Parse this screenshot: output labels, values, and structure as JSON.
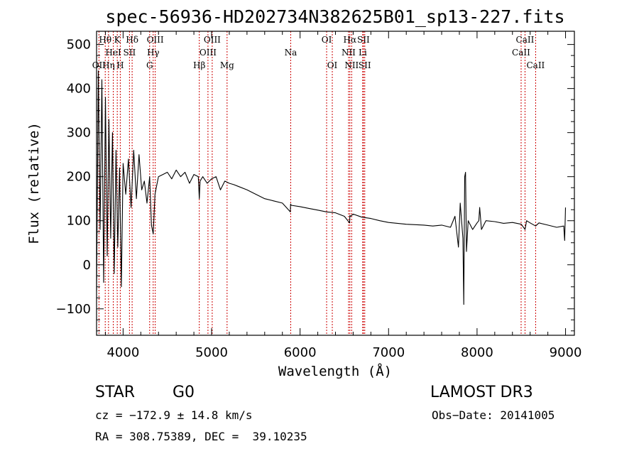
{
  "chart_data": {
    "type": "line",
    "title": "spec-56936-HD202734N382625B01_sp13-227.fits",
    "xlabel": "Wavelength (Å)",
    "ylabel": "Flux (relative)",
    "xlim": [
      3700,
      9100
    ],
    "ylim": [
      -160,
      530
    ],
    "xticks": [
      4000,
      5000,
      6000,
      7000,
      8000,
      9000
    ],
    "xtick_labels": [
      "4000",
      "5000",
      "6000",
      "7000",
      "8000",
      "9000"
    ],
    "yticks": [
      -100,
      0,
      100,
      200,
      300,
      400,
      500
    ],
    "ytick_labels": [
      "−100",
      "0",
      "100",
      "200",
      "300",
      "400",
      "500"
    ],
    "series": [
      {
        "name": "flux",
        "x": [
          3700,
          3720,
          3740,
          3760,
          3780,
          3800,
          3820,
          3840,
          3860,
          3880,
          3900,
          3920,
          3940,
          3960,
          3980,
          4000,
          4030,
          4060,
          4090,
          4120,
          4150,
          4180,
          4210,
          4240,
          4270,
          4300,
          4320,
          4340,
          4360,
          4380,
          4400,
          4450,
          4500,
          4550,
          4600,
          4650,
          4700,
          4750,
          4800,
          4850,
          4861,
          4870,
          4900,
          4950,
          5000,
          5050,
          5100,
          5150,
          5200,
          5250,
          5300,
          5400,
          5500,
          5600,
          5700,
          5800,
          5890,
          5893,
          5900,
          6000,
          6100,
          6200,
          6300,
          6400,
          6500,
          6560,
          6563,
          6570,
          6600,
          6700,
          6800,
          6900,
          7000,
          7100,
          7200,
          7300,
          7400,
          7500,
          7600,
          7700,
          7750,
          7790,
          7810,
          7840,
          7850,
          7860,
          7870,
          7880,
          7900,
          7950,
          8000,
          8020,
          8030,
          8050,
          8100,
          8200,
          8300,
          8400,
          8500,
          8542,
          8560,
          8600,
          8662,
          8700,
          8800,
          8900,
          8980,
          8990,
          9000
        ],
        "y": [
          -60,
          440,
          80,
          420,
          -40,
          380,
          20,
          330,
          60,
          300,
          -20,
          260,
          40,
          220,
          -50,
          230,
          160,
          240,
          130,
          260,
          150,
          250,
          170,
          190,
          140,
          200,
          90,
          70,
          160,
          180,
          200,
          205,
          210,
          195,
          215,
          200,
          210,
          185,
          205,
          200,
          150,
          190,
          200,
          185,
          195,
          200,
          170,
          190,
          185,
          182,
          178,
          170,
          160,
          150,
          145,
          140,
          120,
          138,
          135,
          132,
          128,
          124,
          120,
          118,
          110,
          95,
          112,
          110,
          115,
          108,
          105,
          100,
          96,
          94,
          92,
          91,
          90,
          88,
          90,
          85,
          110,
          40,
          140,
          60,
          -90,
          200,
          210,
          30,
          100,
          80,
          95,
          100,
          130,
          80,
          100,
          98,
          94,
          96,
          92,
          80,
          100,
          95,
          88,
          95,
          90,
          85,
          88,
          55,
          130
        ]
      }
    ],
    "spectral_lines": [
      {
        "label": "OII",
        "x": 3727,
        "row": 2
      },
      {
        "label": "Hθ",
        "x": 3798,
        "row": 0
      },
      {
        "label": "Hη",
        "x": 3835,
        "row": 2
      },
      {
        "label": "HeI",
        "x": 3889,
        "row": 1
      },
      {
        "label": "K",
        "x": 3934,
        "row": 0
      },
      {
        "label": "H",
        "x": 3968,
        "row": 2
      },
      {
        "label": "SII",
        "x": 4072,
        "row": 1
      },
      {
        "label": "Hδ",
        "x": 4102,
        "row": 0
      },
      {
        "label": "G",
        "x": 4300,
        "row": 2
      },
      {
        "label": "Hγ",
        "x": 4340,
        "row": 1
      },
      {
        "label": "OIII",
        "x": 4363,
        "row": 0
      },
      {
        "label": "Hβ",
        "x": 4861,
        "row": 2
      },
      {
        "label": "OIII",
        "x": 4959,
        "row": 1
      },
      {
        "label": "OIII",
        "x": 5007,
        "row": 0
      },
      {
        "label": "Mg",
        "x": 5175,
        "row": 2
      },
      {
        "label": "Na",
        "x": 5894,
        "row": 1
      },
      {
        "label": "OI",
        "x": 6300,
        "row": 0
      },
      {
        "label": "OI",
        "x": 6364,
        "row": 2
      },
      {
        "label": "NII",
        "x": 6548,
        "row": 1
      },
      {
        "label": "Hα",
        "x": 6563,
        "row": 0
      },
      {
        "label": "NII",
        "x": 6583,
        "row": 2
      },
      {
        "label": "Li",
        "x": 6708,
        "row": 1
      },
      {
        "label": "SII",
        "x": 6716,
        "row": 0
      },
      {
        "label": "SII",
        "x": 6731,
        "row": 2
      },
      {
        "label": "CaII",
        "x": 8498,
        "row": 1
      },
      {
        "label": "CaII",
        "x": 8542,
        "row": 0
      },
      {
        "label": "CaII",
        "x": 8662,
        "row": 2
      }
    ]
  },
  "info": {
    "class": "STAR",
    "subclass": "G0",
    "survey": "LAMOST DR3",
    "cz": "cz = −172.9 ± 14.8 km/s",
    "obs_date": "Obs−Date: 20141005",
    "coords": "RA = 308.75389, DEC =  39.10235"
  },
  "colors": {
    "axis": "#000000",
    "spectrum": "#000000",
    "line_marker": "#cc0000"
  }
}
